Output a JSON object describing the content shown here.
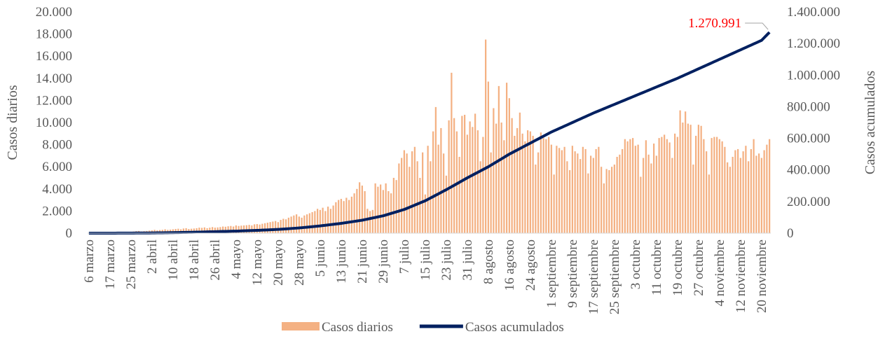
{
  "chart_data": {
    "type": "combo",
    "y_label": "Casos diarios",
    "y2_label": "Casos acumulados",
    "annotation": "1.270.991",
    "ylim": [
      0,
      20000
    ],
    "yticks": [
      0,
      {
        "value": 2000,
        "label": "2.000"
      },
      {
        "value": 4000,
        "label": "4.000"
      },
      {
        "value": 6000,
        "label": "6.000"
      },
      {
        "value": 8000,
        "label": "8.000"
      },
      {
        "value": 10000,
        "label": "10.000"
      },
      {
        "value": 12000,
        "label": "12.000"
      },
      {
        "value": 14000,
        "label": "14.000"
      },
      {
        "value": 16000,
        "label": "16.000"
      },
      {
        "value": 18000,
        "label": "18.000"
      },
      {
        "value": 20000,
        "label": "20.000"
      }
    ],
    "y2lim": [
      0,
      1400000
    ],
    "y2ticks": [
      0,
      {
        "value": 200000,
        "label": "200.000"
      },
      {
        "value": 400000,
        "label": "400.000"
      },
      {
        "value": 600000,
        "label": "600.000"
      },
      {
        "value": 800000,
        "label": "800.000"
      },
      {
        "value": 1000000,
        "label": "1.000.000"
      },
      {
        "value": 1200000,
        "label": "1.200.000"
      },
      {
        "value": 1400000,
        "label": "1.400.000"
      }
    ],
    "categories": [
      "6 marzo",
      null,
      null,
      null,
      null,
      null,
      null,
      null,
      "17 marzo",
      null,
      null,
      null,
      null,
      null,
      null,
      null,
      "25 marzo",
      null,
      null,
      null,
      null,
      null,
      null,
      null,
      "2 abril",
      null,
      null,
      null,
      null,
      null,
      null,
      null,
      "10 abril",
      null,
      null,
      null,
      null,
      null,
      null,
      null,
      "18 abril",
      null,
      null,
      null,
      null,
      null,
      null,
      null,
      "26 abril",
      null,
      null,
      null,
      null,
      null,
      null,
      null,
      "4 mayo",
      null,
      null,
      null,
      null,
      null,
      null,
      null,
      "12 mayo",
      null,
      null,
      null,
      null,
      null,
      null,
      null,
      "20 mayo",
      null,
      null,
      null,
      null,
      null,
      null,
      null,
      "28 mayo",
      null,
      null,
      null,
      null,
      null,
      null,
      null,
      "5 junio",
      null,
      null,
      null,
      null,
      null,
      null,
      null,
      "13 junio",
      null,
      null,
      null,
      null,
      null,
      null,
      null,
      "21 junio",
      null,
      null,
      null,
      null,
      null,
      null,
      null,
      "29 junio",
      null,
      null,
      null,
      null,
      null,
      null,
      null,
      "7 julio",
      null,
      null,
      null,
      null,
      null,
      null,
      null,
      "15 julio",
      null,
      null,
      null,
      null,
      null,
      null,
      null,
      "23 julio",
      null,
      null,
      null,
      null,
      null,
      null,
      null,
      "31 julio",
      null,
      null,
      null,
      null,
      null,
      null,
      null,
      "8 agosto",
      null,
      null,
      null,
      null,
      null,
      null,
      null,
      "16 agosto",
      null,
      null,
      null,
      null,
      null,
      null,
      null,
      "24 agosto",
      null,
      null,
      null,
      null,
      null,
      null,
      null,
      "1 septiembre",
      null,
      null,
      null,
      null,
      null,
      null,
      null,
      "9 septiembre",
      null,
      null,
      null,
      null,
      null,
      null,
      null,
      "17 septiembre",
      null,
      null,
      null,
      null,
      null,
      null,
      null,
      "25 septiembre",
      null,
      null,
      null,
      null,
      null,
      null,
      null,
      "3 octubre",
      null,
      null,
      null,
      null,
      null,
      null,
      null,
      "11 octubre",
      null,
      null,
      null,
      null,
      null,
      null,
      null,
      "19 octubre",
      null,
      null,
      null,
      null,
      null,
      null,
      null,
      "27 octubre",
      null,
      null,
      null,
      null,
      null,
      null,
      null,
      "4 noviembre",
      null,
      null,
      null,
      null,
      null,
      null,
      null,
      "12 noviembre",
      null,
      null,
      null,
      null,
      null,
      null,
      null,
      "20 noviembre",
      null,
      null,
      null
    ],
    "series": [
      {
        "name": "Casos diarios",
        "type": "bar",
        "color": "#f4b183",
        "values": [
          1,
          5,
          2,
          4,
          5,
          16,
          28,
          15,
          48,
          71,
          55,
          65,
          90,
          92,
          115,
          85,
          120,
          150,
          180,
          200,
          150,
          180,
          200,
          230,
          250,
          300,
          250,
          280,
          300,
          350,
          300,
          320,
          350,
          380,
          400,
          350,
          420,
          450,
          380,
          400,
          420,
          450,
          500,
          480,
          520,
          450,
          500,
          550,
          500,
          520,
          550,
          600,
          580,
          620,
          650,
          600,
          700,
          650,
          680,
          700,
          720,
          750,
          700,
          800,
          820,
          780,
          850,
          900,
          950,
          1000,
          1050,
          1100,
          1000,
          1200,
          1300,
          1250,
          1400,
          1500,
          1600,
          1700,
          1500,
          1400,
          1600,
          1700,
          1800,
          1900,
          2000,
          2200,
          2100,
          2300,
          2000,
          2400,
          2200,
          2500,
          2800,
          3000,
          3100,
          2900,
          3200,
          3000,
          3300,
          3600,
          4000,
          4600,
          4300,
          3800,
          2200,
          2000,
          2100,
          4500,
          4200,
          4400,
          3900,
          4500,
          3800,
          3600,
          5000,
          4800,
          6300,
          6800,
          7500,
          7200,
          6000,
          7400,
          7800,
          6500,
          5000,
          7300,
          3500,
          7900,
          6500,
          9200,
          11400,
          8000,
          9500,
          7200,
          5200,
          10200,
          14500,
          10400,
          9200,
          6900,
          10600,
          10700,
          8900,
          10100,
          9600,
          10800,
          9300,
          6500,
          8700,
          17500,
          13700,
          7300,
          11300,
          9900,
          13300,
          10000,
          8400,
          13600,
          12200,
          10400,
          8800,
          9500,
          10900,
          9000,
          8300,
          9300,
          9200,
          8800,
          6200,
          7300,
          9100,
          8600,
          8500,
          8700,
          8000,
          5300,
          7900,
          7700,
          7500,
          7800,
          6500,
          5700,
          7900,
          7400,
          7200,
          6700,
          7800,
          7600,
          5400,
          7000,
          6800,
          7600,
          7800,
          6000,
          4500,
          5800,
          5700,
          6000,
          6200,
          6900,
          7100,
          7600,
          8500,
          8300,
          8500,
          8600,
          7900,
          8000,
          5100,
          6800,
          8400,
          7100,
          6300,
          8100,
          7000,
          8600,
          8700,
          8900,
          8500,
          8200,
          6800,
          9000,
          8700,
          11100,
          10000,
          11000,
          9900,
          9800,
          6200,
          8800,
          9800,
          9700,
          8500,
          7400,
          5300,
          8600,
          8700,
          8700,
          8500,
          8300,
          7800,
          6400,
          6000,
          6900,
          7500,
          7600,
          6800,
          7400,
          7900,
          6500,
          7600,
          8500,
          7000,
          7200,
          6800,
          7500,
          8000,
          8500
        ]
      },
      {
        "name": "Casos acumulados",
        "type": "line",
        "axis": "y2",
        "color": "#002060",
        "values": [
          1,
          13,
          26,
          38,
          50,
          63,
          75,
          88,
          100,
          163,
          225,
          288,
          350,
          413,
          475,
          538,
          600,
          713,
          825,
          938,
          1050,
          1163,
          1275,
          1388,
          1500,
          1750,
          2000,
          2250,
          2500,
          2750,
          3000,
          3250,
          3500,
          3813,
          4125,
          4438,
          4750,
          5063,
          5375,
          5688,
          6000,
          6438,
          6875,
          7313,
          7750,
          8188,
          8625,
          9063,
          9500,
          9938,
          10375,
          10813,
          11250,
          11688,
          12125,
          12563,
          13000,
          13563,
          14125,
          14688,
          15250,
          15813,
          16375,
          16938,
          17500,
          18313,
          19125,
          19938,
          20750,
          21563,
          22375,
          23188,
          24000,
          25125,
          26250,
          27375,
          28500,
          29625,
          30750,
          31875,
          33000,
          34625,
          36250,
          37875,
          39500,
          41125,
          42750,
          44375,
          46000,
          48000,
          50000,
          52000,
          54000,
          56000,
          58000,
          60000,
          62000,
          64500,
          67000,
          69500,
          72000,
          74500,
          77000,
          79500,
          82000,
          85500,
          89000,
          92500,
          96000,
          99500,
          103000,
          106500,
          110000,
          115000,
          120000,
          125000,
          130000,
          135000,
          140000,
          145000,
          150000,
          156875,
          163750,
          170625,
          177500,
          184375,
          191250,
          198125,
          205000,
          213750,
          222500,
          231250,
          240000,
          248750,
          257500,
          266250,
          275000,
          284375,
          293750,
          303125,
          312500,
          321875,
          331250,
          340625,
          350000,
          358750,
          367500,
          376250,
          385000,
          393750,
          402500,
          411250,
          420000,
          430000,
          440000,
          450000,
          460000,
          470000,
          480000,
          490000,
          500000,
          508750,
          517500,
          526250,
          535000,
          543750,
          552500,
          561250,
          570000,
          578750,
          587500,
          596250,
          605000,
          613750,
          622500,
          631250,
          640000,
          647500,
          655000,
          662500,
          670000,
          677500,
          685000,
          692500,
          700000,
          707500,
          715000,
          722500,
          730000,
          737500,
          745000,
          752500,
          760000,
          766875,
          773750,
          780625,
          787500,
          794375,
          801250,
          808125,
          815000,
          821875,
          828750,
          835625,
          842500,
          849375,
          856250,
          863125,
          870000,
          876875,
          883750,
          890625,
          897500,
          904375,
          911250,
          918125,
          925000,
          931875,
          938750,
          945625,
          952500,
          959375,
          966250,
          973125,
          980000,
          987500,
          995000,
          1002500,
          1010000,
          1017500,
          1025000,
          1032500,
          1040000,
          1047500,
          1055000,
          1062500,
          1070000,
          1077500,
          1085000,
          1092500,
          1100000,
          1107500,
          1115000,
          1122500,
          1130000,
          1137500,
          1145000,
          1152500,
          1160000,
          1167500,
          1175000,
          1182500,
          1190000,
          1197500,
          1205000,
          1212500,
          1220000,
          1237000,
          1254000,
          1270991
        ]
      }
    ]
  }
}
